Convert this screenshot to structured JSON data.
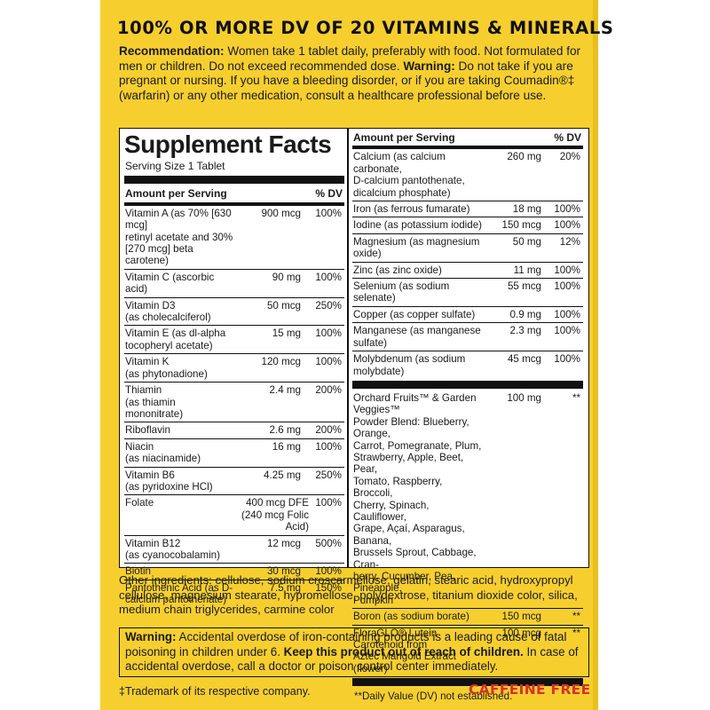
{
  "headline": "100% OR MORE DV OF 20 VITAMINS & MINERALS",
  "recommendation": {
    "label1": "Recommendation:",
    "text1": " Women take 1 tablet daily, preferably with food. Not formulated for men or children. Do not exceed recommended dose. ",
    "label2": "Warning:",
    "text2": " Do not take if you are pregnant or nursing. If you have a bleeding disorder, or if you are taking Coumadin®‡ (warfarin) or any other medication, consult a healthcare professional before use."
  },
  "supplement_facts": {
    "title": "Supplement Facts",
    "serving_size": "Serving Size 1 Tablet",
    "header_amount": "Amount per Serving",
    "header_dv": "% DV",
    "left_rows": [
      {
        "name": "Vitamin A (as 70% [630 mcg]\nretinyl acetate and 30%\n[270 mcg] beta carotene)",
        "amount": "900 mcg",
        "dv": "100%"
      },
      {
        "name": "Vitamin C (ascorbic acid)",
        "amount": "90 mg",
        "dv": "100%"
      },
      {
        "name": "Vitamin D3\n(as cholecalciferol)",
        "amount": "50 mcg",
        "dv": "250%"
      },
      {
        "name": "Vitamin E (as dl-alpha\ntocopheryl acetate)",
        "amount": "15 mg",
        "dv": "100%"
      },
      {
        "name": "Vitamin K\n(as phytonadione)",
        "amount": "120 mcg",
        "dv": "100%"
      },
      {
        "name": "Thiamin\n(as thiamin mononitrate)",
        "amount": "2.4 mg",
        "dv": "200%"
      },
      {
        "name": "Riboflavin",
        "amount": "2.6 mg",
        "dv": "200%"
      },
      {
        "name": "Niacin\n(as niacinamide)",
        "amount": "16 mg",
        "dv": "100%"
      },
      {
        "name": "Vitamin B6\n(as pyridoxine HCl)",
        "amount": "4.25 mg",
        "dv": "250%"
      }
    ],
    "folate": {
      "name": "Folate",
      "amount": "400 mcg DFE\n(240 mcg Folic Acid)",
      "dv": "100%"
    },
    "left_rows_2": [
      {
        "name": "Vitamin B12\n(as cyanocobalamin)",
        "amount": "12 mcg",
        "dv": "500%"
      },
      {
        "name": "Biotin",
        "amount": "30 mcg",
        "dv": "100%"
      },
      {
        "name": "Pantothenic Acid (as D-\ncalcium pantothenate)",
        "amount": "7.5 mg",
        "dv": "150%"
      }
    ],
    "right_rows": [
      {
        "name": "Calcium (as calcium carbonate,\nD-calcium pantothenate,\ndicalcium phosphate)",
        "amount": "260 mg",
        "dv": "20%"
      },
      {
        "name": "Iron (as ferrous fumarate)",
        "amount": "18 mg",
        "dv": "100%"
      },
      {
        "name": "Iodine (as potassium iodide)",
        "amount": "150 mcg",
        "dv": "100%"
      },
      {
        "name": "Magnesium (as magnesium\noxide)",
        "amount": "50 mg",
        "dv": "12%"
      },
      {
        "name": "Zinc (as zinc oxide)",
        "amount": "11 mg",
        "dv": "100%"
      },
      {
        "name": "Selenium (as sodium selenate)",
        "amount": "55 mcg",
        "dv": "100%"
      },
      {
        "name": "Copper (as copper sulfate)",
        "amount": "0.9 mg",
        "dv": "100%"
      },
      {
        "name": "Manganese (as manganese sulfate)",
        "amount": "2.3 mg",
        "dv": "100%"
      },
      {
        "name": "Molybdenum (as sodium\nmolybdate)",
        "amount": "45 mcg",
        "dv": "100%"
      }
    ],
    "right_rows_2": [
      {
        "name": "Orchard Fruits™ & Garden Veggies™\nPowder Blend: Blueberry, Orange,\nCarrot, Pomegranate, Plum,\nStrawberry, Apple, Beet, Pear,\nTomato, Raspberry, Broccoli,\nCherry, Spinach, Cauliflower,\nGrape, Açaí, Asparagus, Banana,\nBrussels Sprout, Cabbage, Cran-\nberry, Cucumber, Pea, Pineapple,\nPumpkin",
        "amount": "100 mg",
        "dv": "**"
      },
      {
        "name": "Boron (as sodium borate)",
        "amount": "150 mcg",
        "dv": "**"
      },
      {
        "name": "FloraGLO® Lutein Carotenoid from\nAztec Marigold Extract (flower)",
        "amount": "100 mcg",
        "dv": "**"
      }
    ],
    "footnote": "**Daily Value (DV) not established."
  },
  "other_ingredients": "Other ingredients: cellulose, sodium croscarmellose, gelatin, stearic acid, hydroxypropyl cellulose, magnesium stearate, hypromellose, polydextrose, titanium dioxide color, silica, medium chain triglycerides, carmine color",
  "warning_box": {
    "label": "Warning:",
    "text1": " Accidental overdose of iron-containing products is a leading cause of fatal poisoning in children under 6. ",
    "bold": "Keep this product out of reach of children.",
    "text2": " In case of accidental overdose, call a doctor or poison control center immediately."
  },
  "trademark_note": "‡Trademark of its respective company.",
  "caffeine_free": "CAFFEINE FREE",
  "colors": {
    "panel": "#f6cf2f",
    "caffeine": "#d8312a"
  }
}
